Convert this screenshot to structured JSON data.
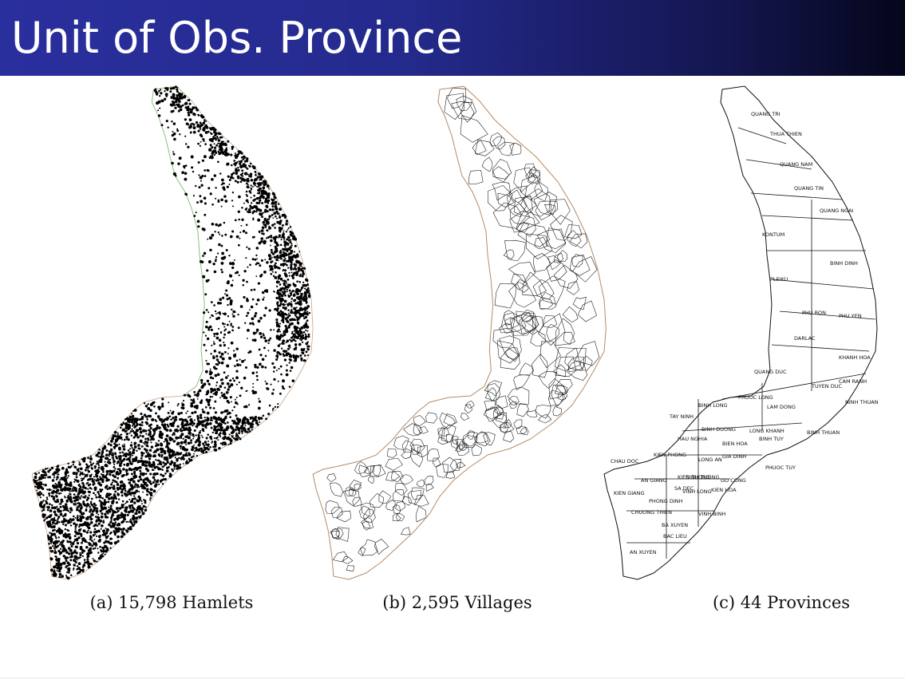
{
  "slide": {
    "title": "Unit of Obs. Province"
  },
  "figures": [
    {
      "id": "a",
      "caption": "(a) 15,798 Hamlets"
    },
    {
      "id": "b",
      "caption": "(b) 2,595 Villages"
    },
    {
      "id": "c",
      "caption": "(c) 44 Provinces"
    }
  ],
  "provinces": [
    {
      "name": "QUANG TRI"
    },
    {
      "name": "THUA THIEN"
    },
    {
      "name": "QUANG NAM"
    },
    {
      "name": "QUANG TIN"
    },
    {
      "name": "QUANG NGAI"
    },
    {
      "name": "KONTUM"
    },
    {
      "name": "BINH DINH"
    },
    {
      "name": "PLEIKU"
    },
    {
      "name": "PHU BON"
    },
    {
      "name": "PHU YEN"
    },
    {
      "name": "DARLAC"
    },
    {
      "name": "KHANH HOA"
    },
    {
      "name": "QUANG DUC"
    },
    {
      "name": "TUYEN DUC"
    },
    {
      "name": "CAM RANH"
    },
    {
      "name": "PHUOC LONG"
    },
    {
      "name": "NINH THUAN"
    },
    {
      "name": "BINH LONG"
    },
    {
      "name": "LAM DONG"
    },
    {
      "name": "TAY NINH"
    },
    {
      "name": "BINH DUONG"
    },
    {
      "name": "LONG KHANH"
    },
    {
      "name": "BINH TUY"
    },
    {
      "name": "BINH THUAN"
    },
    {
      "name": "HAU NGHIA"
    },
    {
      "name": "BIEN HOA"
    },
    {
      "name": "GIA DINH"
    },
    {
      "name": "LONG AN"
    },
    {
      "name": "KIEN PHONG"
    },
    {
      "name": "CHAU DOC"
    },
    {
      "name": "KIEN TUONG"
    },
    {
      "name": "DINH TUONG"
    },
    {
      "name": "PHUOC TUY"
    },
    {
      "name": "AN GIANG"
    },
    {
      "name": "SA DEC"
    },
    {
      "name": "GO CONG"
    },
    {
      "name": "VINH LONG"
    },
    {
      "name": "KIEN GIANG"
    },
    {
      "name": "KIEN HOA"
    },
    {
      "name": "PHONG DINH"
    },
    {
      "name": "CHUONG THIEN"
    },
    {
      "name": "VINH BINH"
    },
    {
      "name": "BA XUYEN"
    },
    {
      "name": "BAC LIEU"
    },
    {
      "name": "AN XUYEN"
    }
  ]
}
